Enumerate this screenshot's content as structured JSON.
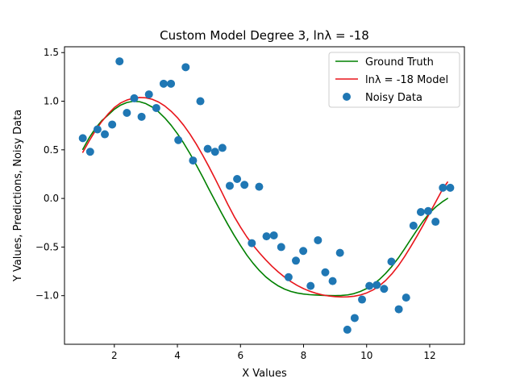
{
  "chart_data": {
    "type": "scatter",
    "title": "Custom Model Degree 3, lnλ = -18",
    "xlabel": "X Values",
    "ylabel": "Y Values, Predictions, Noisy Data",
    "xlim": [
      0.42,
      13.1
    ],
    "ylim": [
      -1.5,
      1.56
    ],
    "xticks": [
      2,
      4,
      6,
      8,
      10,
      12
    ],
    "xtick_labels": [
      "2",
      "4",
      "6",
      "8",
      "10",
      "12"
    ],
    "yticks": [
      1.5,
      1.0,
      0.5,
      0.0,
      -0.5,
      -1.0
    ],
    "ytick_labels": [
      "1.5",
      "1.0",
      "0.5",
      "0.0",
      "−0.5",
      "−1.0"
    ],
    "grid": false,
    "legend_position": "top-right",
    "series": [
      {
        "name": "Ground Truth",
        "kind": "line",
        "color": "#008000",
        "x": [
          1.0,
          1.2,
          1.4,
          1.6,
          1.8,
          2.0,
          2.2,
          2.4,
          2.6,
          2.8,
          3.0,
          3.2,
          3.4,
          3.6,
          3.8,
          4.0,
          4.2,
          4.4,
          4.6,
          4.8,
          5.0,
          5.2,
          5.4,
          5.6,
          5.8,
          6.0,
          6.2,
          6.4,
          6.6,
          6.8,
          7.0,
          7.2,
          7.4,
          7.6,
          7.8,
          8.0,
          8.2,
          8.4,
          8.6,
          8.8,
          9.0,
          9.2,
          9.4,
          9.6,
          9.8,
          10.0,
          10.2,
          10.4,
          10.6,
          10.8,
          11.0,
          11.2,
          11.4,
          11.6,
          11.8,
          12.0,
          12.2,
          12.4,
          12.566
        ],
        "y": [
          0.505,
          0.622,
          0.721,
          0.799,
          0.857,
          0.917,
          0.96,
          0.987,
          0.999,
          0.995,
          0.975,
          0.94,
          0.891,
          0.828,
          0.753,
          0.666,
          0.568,
          0.46,
          0.343,
          0.222,
          0.095,
          -0.028,
          -0.15,
          -0.268,
          -0.38,
          -0.484,
          -0.582,
          -0.667,
          -0.742,
          -0.806,
          -0.857,
          -0.9,
          -0.933,
          -0.957,
          -0.973,
          -0.983,
          -0.99,
          -0.994,
          -0.997,
          -0.999,
          -1.0,
          -0.998,
          -0.992,
          -0.979,
          -0.957,
          -0.927,
          -0.887,
          -0.835,
          -0.772,
          -0.699,
          -0.615,
          -0.52,
          -0.42,
          -0.323,
          -0.23,
          -0.148,
          -0.085,
          -0.035,
          0.0
        ]
      },
      {
        "name": "lnλ = -18 Model",
        "kind": "line",
        "color": "#e8151b",
        "x": [
          1.0,
          1.2,
          1.4,
          1.6,
          1.8,
          2.0,
          2.2,
          2.4,
          2.6,
          2.8,
          3.0,
          3.2,
          3.4,
          3.6,
          3.8,
          4.0,
          4.2,
          4.4,
          4.6,
          4.8,
          5.0,
          5.2,
          5.4,
          5.6,
          5.8,
          6.0,
          6.2,
          6.4,
          6.6,
          6.8,
          7.0,
          7.2,
          7.4,
          7.6,
          7.8,
          8.0,
          8.2,
          8.4,
          8.6,
          8.8,
          9.0,
          9.2,
          9.4,
          9.6,
          9.8,
          10.0,
          10.2,
          10.4,
          10.6,
          10.8,
          11.0,
          11.2,
          11.4,
          11.6,
          11.8,
          12.0,
          12.2,
          12.4,
          12.566
        ],
        "y": [
          0.475,
          0.59,
          0.697,
          0.79,
          0.868,
          0.935,
          0.982,
          1.012,
          1.03,
          1.038,
          1.035,
          1.02,
          0.992,
          0.951,
          0.897,
          0.831,
          0.752,
          0.661,
          0.558,
          0.446,
          0.326,
          0.2,
          0.07,
          -0.062,
          -0.186,
          -0.295,
          -0.395,
          -0.482,
          -0.56,
          -0.632,
          -0.698,
          -0.757,
          -0.81,
          -0.856,
          -0.895,
          -0.928,
          -0.955,
          -0.976,
          -0.992,
          -1.003,
          -1.01,
          -1.013,
          -1.012,
          -1.006,
          -0.993,
          -0.972,
          -0.942,
          -0.9,
          -0.845,
          -0.776,
          -0.695,
          -0.6,
          -0.495,
          -0.385,
          -0.27,
          -0.15,
          -0.03,
          0.09,
          0.168
        ]
      },
      {
        "name": "Noisy Data",
        "kind": "scatter",
        "color": "#1f77b4",
        "x": [
          1.0,
          1.233,
          1.466,
          1.699,
          1.932,
          2.165,
          2.398,
          2.631,
          2.864,
          3.097,
          3.33,
          3.563,
          3.796,
          4.029,
          4.262,
          4.495,
          4.728,
          4.961,
          5.194,
          5.427,
          5.66,
          5.893,
          6.126,
          6.359,
          6.592,
          6.825,
          7.058,
          7.291,
          7.524,
          7.757,
          7.99,
          8.223,
          8.456,
          8.689,
          8.922,
          9.155,
          9.388,
          9.621,
          9.854,
          10.087,
          10.32,
          10.553,
          10.786,
          11.019,
          11.252,
          11.485,
          11.718,
          11.951,
          12.184,
          12.417,
          12.65
        ],
        "y": [
          0.62,
          0.48,
          0.71,
          0.66,
          0.76,
          1.41,
          0.88,
          1.03,
          0.84,
          1.07,
          0.93,
          1.18,
          1.18,
          0.6,
          1.35,
          0.39,
          1.0,
          0.51,
          0.48,
          0.52,
          0.13,
          0.2,
          0.14,
          -0.46,
          0.12,
          -0.39,
          -0.38,
          -0.5,
          -0.81,
          -0.64,
          -0.54,
          -0.9,
          -0.43,
          -0.76,
          -0.85,
          -0.56,
          -1.35,
          -1.23,
          -1.04,
          -0.9,
          -0.89,
          -0.93,
          -0.65,
          -1.14,
          -1.02,
          -0.28,
          -0.14,
          -0.13,
          -0.24,
          0.11,
          0.11
        ]
      }
    ]
  }
}
